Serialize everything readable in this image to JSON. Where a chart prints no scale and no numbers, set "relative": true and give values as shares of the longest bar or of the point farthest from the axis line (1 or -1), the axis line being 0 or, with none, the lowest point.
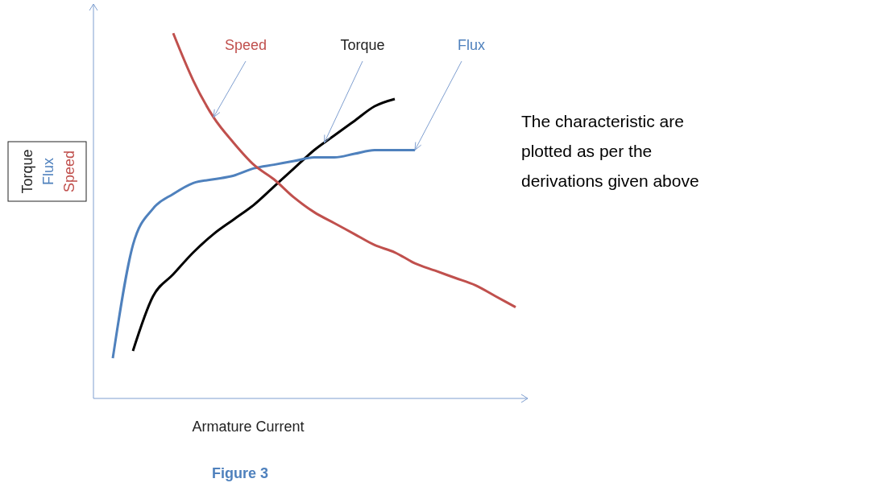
{
  "chart_data": {
    "type": "line",
    "relative": true,
    "xlabel": "Armature Current",
    "ylabel": "Torque\nFlux\nSpeed",
    "categories": [
      null,
      null,
      null,
      null,
      null,
      null,
      null,
      null,
      null,
      null,
      null,
      null,
      null,
      null,
      null,
      null,
      null,
      null,
      null,
      null,
      null
    ],
    "series": [
      {
        "name": "Torque",
        "color": "#000000",
        "values": [
          null,
          0.13,
          0.28,
          0.34,
          0.4,
          0.45,
          0.49,
          0.53,
          0.58,
          0.63,
          0.68,
          0.72,
          0.76,
          0.8,
          0.82,
          null,
          null,
          null,
          null,
          null,
          null
        ]
      },
      {
        "name": "Flux",
        "color": "#4f81bd",
        "values": [
          0.11,
          0.42,
          0.52,
          0.56,
          0.59,
          0.6,
          0.61,
          0.63,
          0.64,
          0.65,
          0.66,
          0.66,
          0.67,
          0.68,
          0.68,
          0.68,
          null,
          null,
          null,
          null,
          null
        ]
      },
      {
        "name": "Speed",
        "color": "#c0504d",
        "values": [
          null,
          null,
          null,
          1,
          0.87,
          0.77,
          0.7,
          0.64,
          0.6,
          0.55,
          0.51,
          0.48,
          0.45,
          0.42,
          0.4,
          0.37,
          0.35,
          0.33,
          0.31,
          0.28,
          0.25
        ]
      }
    ],
    "annotations": [
      "The characteristic are plotted as per the derivations given above",
      "Figure 3"
    ],
    "legend": false
  }
}
